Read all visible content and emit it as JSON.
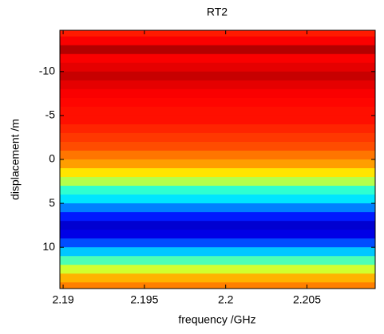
{
  "chart_data": {
    "type": "heatmap",
    "title": "RT2",
    "xlabel": "frequency /GHz",
    "ylabel": "displacement /m",
    "colormap": "jet",
    "clim": [
      0,
      1
    ],
    "y_bins": [
      -15,
      -14,
      -13,
      -12,
      -11,
      -10,
      -9,
      -8,
      -7,
      -6,
      -5,
      -4,
      -3,
      -2,
      -1,
      0,
      1,
      2,
      3,
      4,
      5,
      6,
      7,
      8,
      9,
      10,
      11,
      12,
      13,
      14,
      15
    ],
    "values": [
      0.85,
      0.88,
      0.95,
      0.88,
      0.9,
      0.93,
      0.9,
      0.88,
      0.87,
      0.86,
      0.86,
      0.84,
      0.82,
      0.8,
      0.76,
      0.72,
      0.65,
      0.55,
      0.42,
      0.35,
      0.25,
      0.15,
      0.08,
      0.1,
      0.2,
      0.32,
      0.45,
      0.58,
      0.7,
      0.75
    ],
    "xlim": [
      2.1898,
      2.2092
    ],
    "ylim": [
      -14.7,
      14.7
    ],
    "y_reversed": true,
    "xticks": [
      2.19,
      2.195,
      2.2,
      2.205
    ],
    "yticks": [
      -10,
      -5,
      0,
      5,
      10
    ]
  }
}
